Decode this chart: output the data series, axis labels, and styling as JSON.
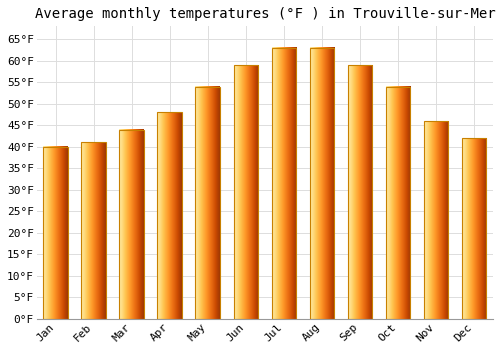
{
  "months": [
    "Jan",
    "Feb",
    "Mar",
    "Apr",
    "May",
    "Jun",
    "Jul",
    "Aug",
    "Sep",
    "Oct",
    "Nov",
    "Dec"
  ],
  "values": [
    40,
    41,
    44,
    48,
    54,
    59,
    63,
    63,
    59,
    54,
    46,
    42
  ],
  "bar_color_left": "#F5A800",
  "bar_color_center": "#FFD060",
  "bar_color_right": "#F5A800",
  "bar_edge_color": "#C88000",
  "title": "Average monthly temperatures (°F ) in Trouville-sur-Mer",
  "ylim": [
    0,
    68
  ],
  "yticks": [
    0,
    5,
    10,
    15,
    20,
    25,
    30,
    35,
    40,
    45,
    50,
    55,
    60,
    65
  ],
  "ytick_labels": [
    "0°F",
    "5°F",
    "10°F",
    "15°F",
    "20°F",
    "25°F",
    "30°F",
    "35°F",
    "40°F",
    "45°F",
    "50°F",
    "55°F",
    "60°F",
    "65°F"
  ],
  "background_color": "#FFFFFF",
  "plot_bg_color": "#FFFFFF",
  "grid_color": "#DDDDDD",
  "title_fontsize": 10,
  "tick_fontsize": 8,
  "font_family": "monospace",
  "bar_width": 0.65
}
